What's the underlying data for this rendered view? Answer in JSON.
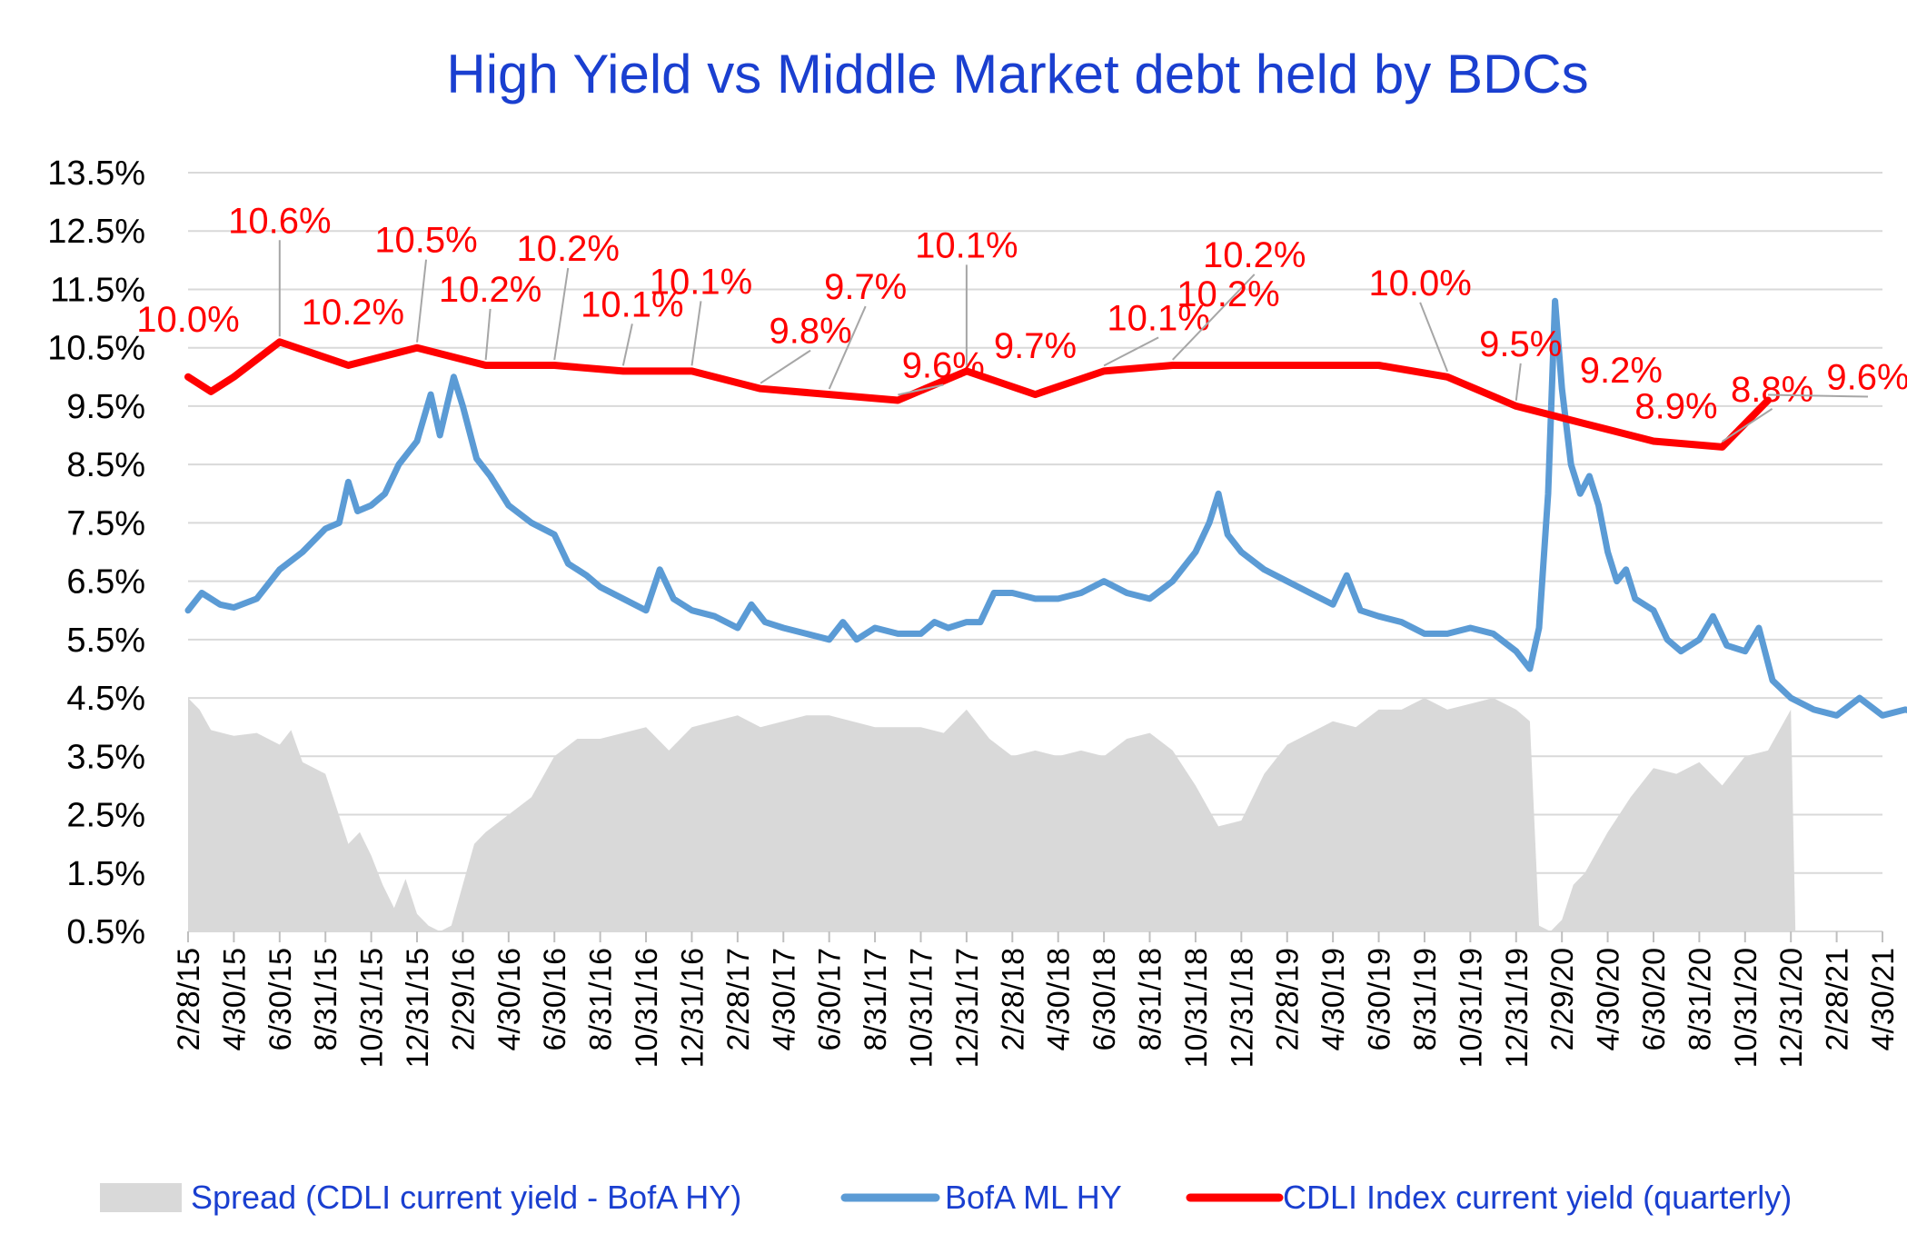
{
  "chart_data": {
    "type": "line",
    "title": "High Yield  vs  Middle Market debt held by BDCs",
    "ylim": [
      0.5,
      13.5
    ],
    "y_ticks": [
      "13.5%",
      "12.5%",
      "11.5%",
      "10.5%",
      "9.5%",
      "8.5%",
      "7.5%",
      "6.5%",
      "5.5%",
      "4.5%",
      "3.5%",
      "2.5%",
      "1.5%",
      "0.5%"
    ],
    "x_ticks": [
      "2/28/15",
      "4/30/15",
      "6/30/15",
      "8/31/15",
      "10/31/15",
      "12/31/15",
      "2/29/16",
      "4/30/16",
      "6/30/16",
      "8/31/16",
      "10/31/16",
      "12/31/16",
      "2/28/17",
      "4/30/17",
      "6/30/17",
      "8/31/17",
      "10/31/17",
      "12/31/17",
      "2/28/18",
      "4/30/18",
      "6/30/18",
      "8/31/18",
      "10/31/18",
      "12/31/18",
      "2/28/19",
      "4/30/19",
      "6/30/19",
      "8/31/19",
      "10/31/19",
      "12/31/19",
      "2/29/20",
      "4/30/20",
      "6/30/20",
      "8/31/20",
      "10/31/20",
      "12/31/20",
      "2/28/21",
      "4/30/21"
    ],
    "grid": "horizontal",
    "legend_position": "bottom",
    "series": [
      {
        "name": "Spread (CDLI current yield - BofA HY)",
        "kind": "area",
        "color": "#d9d9d9",
        "points": [
          [
            0,
            4.5
          ],
          [
            0.25,
            4.3
          ],
          [
            0.5,
            3.95
          ],
          [
            1,
            3.85
          ],
          [
            1.5,
            3.9
          ],
          [
            2,
            3.7
          ],
          [
            2.25,
            3.95
          ],
          [
            2.5,
            3.4
          ],
          [
            3,
            3.2
          ],
          [
            3.25,
            2.6
          ],
          [
            3.5,
            2.0
          ],
          [
            3.75,
            2.2
          ],
          [
            4,
            1.8
          ],
          [
            4.25,
            1.3
          ],
          [
            4.5,
            0.9
          ],
          [
            4.75,
            1.4
          ],
          [
            5,
            0.8
          ],
          [
            5.25,
            0.6
          ],
          [
            5.5,
            0.5
          ],
          [
            5.75,
            0.6
          ],
          [
            6,
            1.3
          ],
          [
            6.25,
            2.0
          ],
          [
            6.5,
            2.2
          ],
          [
            7,
            2.5
          ],
          [
            7.5,
            2.8
          ],
          [
            8,
            3.5
          ],
          [
            8.5,
            3.8
          ],
          [
            9,
            3.8
          ],
          [
            9.5,
            3.9
          ],
          [
            10,
            4.0
          ],
          [
            10.5,
            3.6
          ],
          [
            11,
            4.0
          ],
          [
            11.5,
            4.1
          ],
          [
            12,
            4.2
          ],
          [
            12.5,
            4.0
          ],
          [
            13,
            4.1
          ],
          [
            13.5,
            4.2
          ],
          [
            14,
            4.2
          ],
          [
            14.5,
            4.1
          ],
          [
            15,
            4.0
          ],
          [
            15.5,
            4.0
          ],
          [
            16,
            4.0
          ],
          [
            16.5,
            3.9
          ],
          [
            17,
            4.3
          ],
          [
            17.5,
            3.8
          ],
          [
            18,
            3.5
          ],
          [
            18.5,
            3.6
          ],
          [
            19,
            3.5
          ],
          [
            19.5,
            3.6
          ],
          [
            20,
            3.5
          ],
          [
            20.5,
            3.8
          ],
          [
            21,
            3.9
          ],
          [
            21.5,
            3.6
          ],
          [
            22,
            3.0
          ],
          [
            22.5,
            2.3
          ],
          [
            23,
            2.4
          ],
          [
            23.5,
            3.2
          ],
          [
            24,
            3.7
          ],
          [
            24.5,
            3.9
          ],
          [
            25,
            4.1
          ],
          [
            25.5,
            4.0
          ],
          [
            26,
            4.3
          ],
          [
            26.5,
            4.3
          ],
          [
            27,
            4.5
          ],
          [
            27.5,
            4.3
          ],
          [
            28,
            4.4
          ],
          [
            28.5,
            4.5
          ],
          [
            29,
            4.3
          ],
          [
            29.3,
            4.1
          ],
          [
            29.5,
            0.6
          ],
          [
            29.75,
            0.5
          ],
          [
            30,
            0.7
          ],
          [
            30.25,
            1.3
          ],
          [
            30.5,
            1.5
          ],
          [
            31,
            2.2
          ],
          [
            31.5,
            2.8
          ],
          [
            32,
            3.3
          ],
          [
            32.5,
            3.2
          ],
          [
            33,
            3.4
          ],
          [
            33.5,
            3.0
          ],
          [
            34,
            3.5
          ],
          [
            34.5,
            3.6
          ],
          [
            35,
            4.3
          ],
          [
            35.1,
            0.5
          ]
        ]
      },
      {
        "name": "BofA ML HY",
        "kind": "line",
        "color": "#5b9bd5",
        "points": [
          [
            0,
            6.0
          ],
          [
            0.3,
            6.3
          ],
          [
            0.7,
            6.1
          ],
          [
            1,
            6.05
          ],
          [
            1.5,
            6.2
          ],
          [
            2,
            6.7
          ],
          [
            2.5,
            7.0
          ],
          [
            3,
            7.4
          ],
          [
            3.3,
            7.5
          ],
          [
            3.5,
            8.2
          ],
          [
            3.7,
            7.7
          ],
          [
            4,
            7.8
          ],
          [
            4.3,
            8.0
          ],
          [
            4.6,
            8.5
          ],
          [
            5,
            8.9
          ],
          [
            5.3,
            9.7
          ],
          [
            5.5,
            9.0
          ],
          [
            5.8,
            10.0
          ],
          [
            6,
            9.5
          ],
          [
            6.3,
            8.6
          ],
          [
            6.6,
            8.3
          ],
          [
            7,
            7.8
          ],
          [
            7.5,
            7.5
          ],
          [
            8,
            7.3
          ],
          [
            8.3,
            6.8
          ],
          [
            8.7,
            6.6
          ],
          [
            9,
            6.4
          ],
          [
            9.5,
            6.2
          ],
          [
            10,
            6.0
          ],
          [
            10.3,
            6.7
          ],
          [
            10.6,
            6.2
          ],
          [
            11,
            6.0
          ],
          [
            11.5,
            5.9
          ],
          [
            12,
            5.7
          ],
          [
            12.3,
            6.1
          ],
          [
            12.6,
            5.8
          ],
          [
            13,
            5.7
          ],
          [
            13.5,
            5.6
          ],
          [
            14,
            5.5
          ],
          [
            14.3,
            5.8
          ],
          [
            14.6,
            5.5
          ],
          [
            15,
            5.7
          ],
          [
            15.5,
            5.6
          ],
          [
            16,
            5.6
          ],
          [
            16.3,
            5.8
          ],
          [
            16.6,
            5.7
          ],
          [
            17,
            5.8
          ],
          [
            17.3,
            5.8
          ],
          [
            17.6,
            6.3
          ],
          [
            18,
            6.3
          ],
          [
            18.5,
            6.2
          ],
          [
            19,
            6.2
          ],
          [
            19.5,
            6.3
          ],
          [
            20,
            6.5
          ],
          [
            20.5,
            6.3
          ],
          [
            21,
            6.2
          ],
          [
            21.5,
            6.5
          ],
          [
            22,
            7.0
          ],
          [
            22.3,
            7.5
          ],
          [
            22.5,
            8.0
          ],
          [
            22.7,
            7.3
          ],
          [
            23,
            7.0
          ],
          [
            23.5,
            6.7
          ],
          [
            24,
            6.5
          ],
          [
            24.5,
            6.3
          ],
          [
            25,
            6.1
          ],
          [
            25.3,
            6.6
          ],
          [
            25.6,
            6.0
          ],
          [
            26,
            5.9
          ],
          [
            26.5,
            5.8
          ],
          [
            27,
            5.6
          ],
          [
            27.5,
            5.6
          ],
          [
            28,
            5.7
          ],
          [
            28.5,
            5.6
          ],
          [
            29,
            5.3
          ],
          [
            29.3,
            5.0
          ],
          [
            29.5,
            5.7
          ],
          [
            29.7,
            8.0
          ],
          [
            29.85,
            11.3
          ],
          [
            30,
            9.8
          ],
          [
            30.2,
            8.5
          ],
          [
            30.4,
            8.0
          ],
          [
            30.6,
            8.3
          ],
          [
            30.8,
            7.8
          ],
          [
            31,
            7.0
          ],
          [
            31.2,
            6.5
          ],
          [
            31.4,
            6.7
          ],
          [
            31.6,
            6.2
          ],
          [
            32,
            6.0
          ],
          [
            32.3,
            5.5
          ],
          [
            32.6,
            5.3
          ],
          [
            33,
            5.5
          ],
          [
            33.3,
            5.9
          ],
          [
            33.6,
            5.4
          ],
          [
            34,
            5.3
          ],
          [
            34.3,
            5.7
          ],
          [
            34.6,
            4.8
          ],
          [
            35,
            4.5
          ],
          [
            35.5,
            4.3
          ],
          [
            36,
            4.2
          ],
          [
            36.5,
            4.5
          ],
          [
            37,
            4.2
          ],
          [
            37.5,
            4.3
          ],
          [
            37.8,
            4.25
          ]
        ]
      },
      {
        "name": "CDLI Index current yield (quarterly)",
        "kind": "line",
        "color": "#ff0000",
        "points": [
          [
            0,
            10.0
          ],
          [
            0.5,
            9.75
          ],
          [
            1,
            10.0
          ],
          [
            2,
            10.6
          ],
          [
            3.5,
            10.2
          ],
          [
            5,
            10.5
          ],
          [
            6.5,
            10.2
          ],
          [
            8,
            10.2
          ],
          [
            9.5,
            10.1
          ],
          [
            11,
            10.1
          ],
          [
            12.5,
            9.8
          ],
          [
            14,
            9.7
          ],
          [
            15.5,
            9.6
          ],
          [
            17,
            10.1
          ],
          [
            18.5,
            9.7
          ],
          [
            20,
            10.1
          ],
          [
            21.5,
            10.2
          ],
          [
            23,
            10.2
          ],
          [
            24.5,
            10.2
          ],
          [
            26,
            10.2
          ],
          [
            27.5,
            10.0
          ],
          [
            29,
            9.5
          ],
          [
            30.5,
            9.2
          ],
          [
            32,
            8.9
          ],
          [
            33.5,
            8.8
          ],
          [
            34.5,
            9.6
          ]
        ]
      }
    ],
    "annotations": [
      {
        "text": "10.0%",
        "x": 0,
        "value": 10.0
      },
      {
        "text": "10.6%",
        "x": 2,
        "value": 10.6
      },
      {
        "text": "10.2%",
        "x": 3.5,
        "value": 10.2
      },
      {
        "text": "10.5%",
        "x": 5,
        "value": 10.5
      },
      {
        "text": "10.2%",
        "x": 6.5,
        "value": 10.2
      },
      {
        "text": "10.2%",
        "x": 8,
        "value": 10.2
      },
      {
        "text": "10.1%",
        "x": 9.5,
        "value": 10.1
      },
      {
        "text": "10.1%",
        "x": 11,
        "value": 10.1
      },
      {
        "text": "9.8%",
        "x": 12.5,
        "value": 9.8
      },
      {
        "text": "9.7%",
        "x": 14,
        "value": 9.7
      },
      {
        "text": "9.6%",
        "x": 15.5,
        "value": 9.6
      },
      {
        "text": "10.1%",
        "x": 17,
        "value": 10.1
      },
      {
        "text": "9.7%",
        "x": 18.5,
        "value": 9.7
      },
      {
        "text": "10.1%",
        "x": 20,
        "value": 10.1
      },
      {
        "text": "10.2%",
        "x": 21.5,
        "value": 10.2
      },
      {
        "text": "10.2%",
        "x": 24.5,
        "value": 10.2
      },
      {
        "text": "10.0%",
        "x": 27.5,
        "value": 10.0
      },
      {
        "text": "9.5%",
        "x": 29,
        "value": 9.5
      },
      {
        "text": "9.2%",
        "x": 30.5,
        "value": 9.2
      },
      {
        "text": "8.9%",
        "x": 32,
        "value": 8.9
      },
      {
        "text": "8.8%",
        "x": 33.5,
        "value": 8.8
      },
      {
        "text": "9.6%",
        "x": 34.5,
        "value": 9.6
      }
    ]
  }
}
